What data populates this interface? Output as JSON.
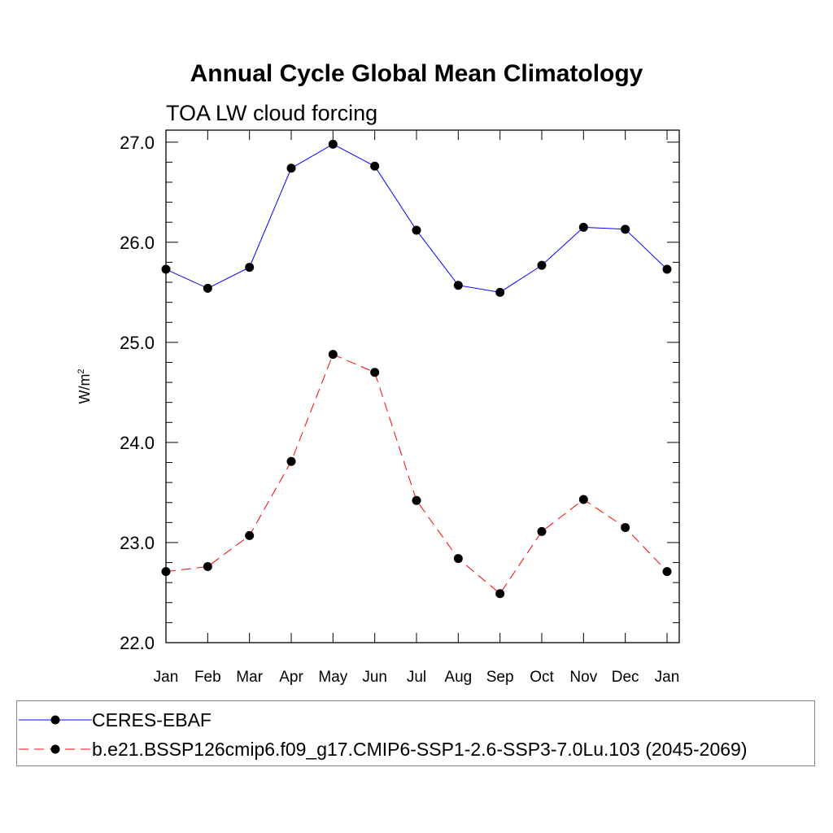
{
  "chart_data": {
    "type": "line",
    "title": "Annual Cycle Global Mean Climatology",
    "subtitle": "TOA LW cloud forcing",
    "xlabel": "",
    "ylabel": "W/m",
    "ylabel_superscript": "2",
    "categories": [
      "Jan",
      "Feb",
      "Mar",
      "Apr",
      "May",
      "Jun",
      "Jul",
      "Aug",
      "Sep",
      "Oct",
      "Nov",
      "Dec",
      "Jan"
    ],
    "ylim": [
      22.0,
      27.12
    ],
    "yticks": [
      "22.0",
      "23.0",
      "24.0",
      "25.0",
      "26.0",
      "27.0"
    ],
    "ytick_values": [
      22,
      23,
      24,
      25,
      26,
      27
    ],
    "legend_position": "bottom",
    "series": [
      {
        "name": "CERES-EBAF",
        "color": "#0000ff",
        "dash": "solid",
        "values": [
          25.73,
          25.54,
          25.75,
          26.74,
          26.98,
          26.76,
          26.12,
          25.57,
          25.5,
          25.77,
          26.15,
          26.13,
          25.73
        ]
      },
      {
        "name": "b.e21.BSSP126cmip6.f09_g17.CMIP6-SSP1-2.6-SSP3-7.0Lu.103 (2045-2069)",
        "color": "#ff0000",
        "dash": "dashed",
        "values": [
          22.71,
          22.76,
          23.07,
          23.81,
          24.88,
          24.7,
          23.42,
          22.84,
          22.49,
          23.11,
          23.43,
          23.15,
          22.71
        ]
      }
    ]
  }
}
